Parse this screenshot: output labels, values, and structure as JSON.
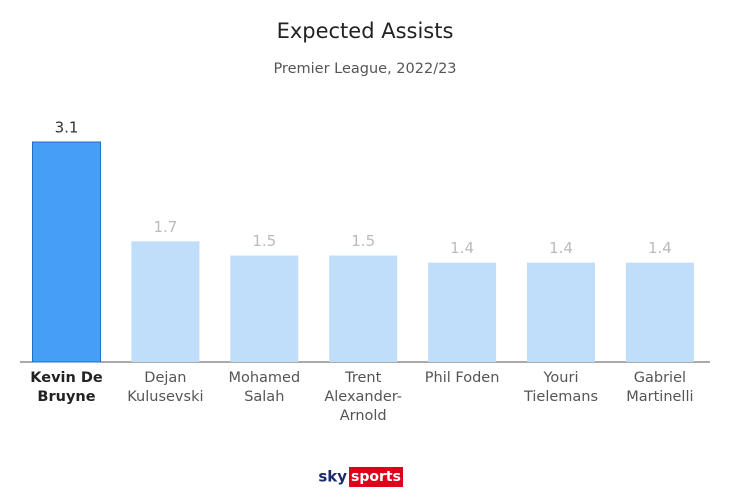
{
  "chart_data": {
    "type": "bar",
    "title": "Expected Assists",
    "subtitle": "Premier League, 2022/23",
    "categories": [
      "Kevin De Bruyne",
      "Dejan Kulusevski",
      "Mohamed Salah",
      "Trent Alexander-Arnold",
      "Phil Foden",
      "Youri Tielemans",
      "Gabriel Martinelli"
    ],
    "values": [
      3.1,
      1.7,
      1.5,
      1.5,
      1.4,
      1.4,
      1.4
    ],
    "color": "#c0ddfa",
    "highlight_color": "#479ef5",
    "highlight_index": 0,
    "logo": {
      "left": "sky",
      "right": "sports"
    }
  }
}
